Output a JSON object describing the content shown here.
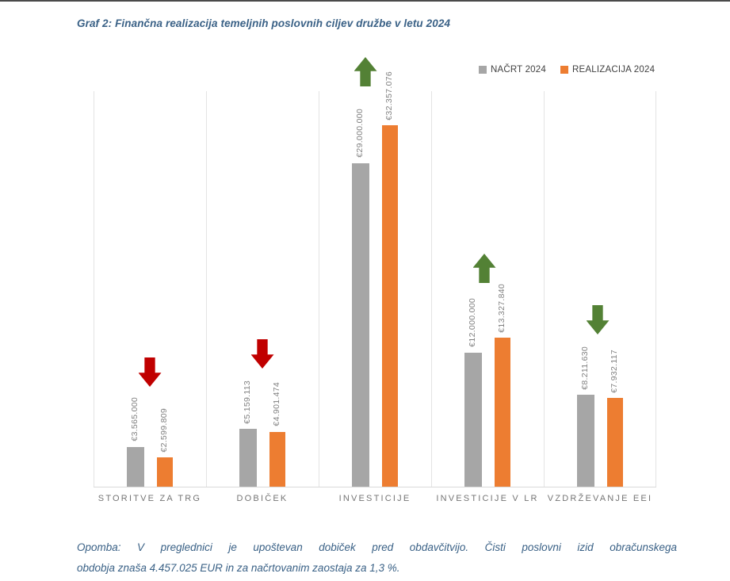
{
  "page": {
    "title": "Graf 2: Finančna realizacija temeljnih poslovnih ciljev družbe v letu 2024",
    "note": {
      "line1": "Opomba: V preglednici je upoštevan dobiček pred obdavčitvijo. Čisti poslovni izid obračunskega",
      "line2": "obdobja znaša 4.457.025 EUR in za načrtovanim zaostaja za 1,3 %."
    }
  },
  "legend": {
    "items": [
      {
        "label": "NAČRT 2024",
        "color": "#A6A6A6"
      },
      {
        "label": "REALIZACIJA 2024",
        "color": "#ED7D31"
      }
    ]
  },
  "chart_data": {
    "type": "bar",
    "title": "Graf 2: Finančna realizacija temeljnih poslovnih ciljev družbe v letu 2024",
    "categories": [
      "STORITVE ZA TRG",
      "DOBIČEK",
      "INVESTICIJE",
      "INVESTICIJE V LR",
      "VZDRŽEVANJE EEI"
    ],
    "series": [
      {
        "name": "NAČRT 2024",
        "color": "#A6A6A6",
        "values": [
          3565000,
          5159113,
          29000000,
          12000000,
          8211630
        ],
        "labels": [
          "€3.565.000",
          "€5.159.113",
          "€29.000.000",
          "€12.000.000",
          "€8.211.630"
        ]
      },
      {
        "name": "REALIZACIJA 2024",
        "color": "#ED7D31",
        "values": [
          2599809,
          4901474,
          32357076,
          13327840,
          7932117
        ],
        "labels": [
          "€2.599.809",
          "€4.901.474",
          "€32.357.076",
          "€13.327.840",
          "€7.932.117"
        ]
      }
    ],
    "indicators": [
      {
        "category": "STORITVE ZA TRG",
        "direction": "down",
        "color": "#C00000"
      },
      {
        "category": "DOBIČEK",
        "direction": "down",
        "color": "#C00000"
      },
      {
        "category": "INVESTICIJE",
        "direction": "up",
        "color": "#538135"
      },
      {
        "category": "INVESTICIJE V LR",
        "direction": "up",
        "color": "#538135"
      },
      {
        "category": "VZDRŽEVANJE EEI",
        "direction": "down",
        "color": "#538135"
      }
    ],
    "ylim": [
      0,
      35500000
    ],
    "xlabel": "",
    "ylabel": "",
    "grid": "vertical-category-separators",
    "legend_position": "top-right"
  },
  "colors": {
    "title_text": "#3A6186",
    "note_text": "#3A6186",
    "value_label": "#808080",
    "category_label": "#757575",
    "legend_text": "#404040",
    "gridline": "#E4E4E4",
    "baseline": "#D9D9D9",
    "arrow_down_bad": "#C00000",
    "arrow_good": "#538135",
    "bar_plan": "#A6A6A6",
    "bar_realization": "#ED7D31"
  }
}
